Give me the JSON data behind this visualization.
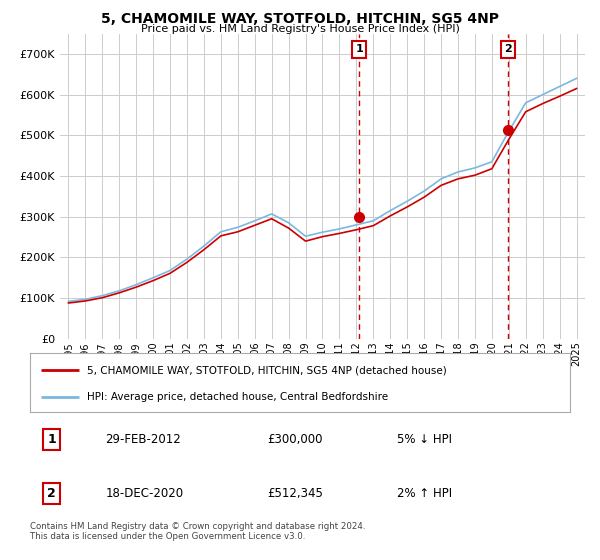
{
  "title": "5, CHAMOMILE WAY, STOTFOLD, HITCHIN, SG5 4NP",
  "subtitle": "Price paid vs. HM Land Registry's House Price Index (HPI)",
  "legend_line1": "5, CHAMOMILE WAY, STOTFOLD, HITCHIN, SG5 4NP (detached house)",
  "legend_line2": "HPI: Average price, detached house, Central Bedfordshire",
  "transaction1_label": "1",
  "transaction1_date": "29-FEB-2012",
  "transaction1_price": "£300,000",
  "transaction1_hpi": "5% ↓ HPI",
  "transaction2_label": "2",
  "transaction2_date": "18-DEC-2020",
  "transaction2_price": "£512,345",
  "transaction2_hpi": "2% ↑ HPI",
  "footnote": "Contains HM Land Registry data © Crown copyright and database right 2024.\nThis data is licensed under the Open Government Licence v3.0.",
  "hpi_color": "#7bb8e0",
  "price_color": "#cc0000",
  "vline_color": "#cc0000",
  "grid_color": "#cccccc",
  "background_color": "#ffffff",
  "years": [
    1995,
    1996,
    1997,
    1998,
    1999,
    2000,
    2001,
    2002,
    2003,
    2004,
    2005,
    2006,
    2007,
    2008,
    2009,
    2010,
    2011,
    2012,
    2013,
    2014,
    2015,
    2016,
    2017,
    2018,
    2019,
    2020,
    2021,
    2022,
    2023,
    2024,
    2025
  ],
  "hpi_values": [
    92000,
    97000,
    106000,
    118000,
    133000,
    150000,
    168000,
    196000,
    228000,
    263000,
    274000,
    290000,
    307000,
    285000,
    252000,
    262000,
    270000,
    280000,
    290000,
    315000,
    338000,
    363000,
    393000,
    410000,
    420000,
    435000,
    510000,
    580000,
    600000,
    620000,
    640000
  ],
  "price_values": [
    88000,
    93000,
    101000,
    113000,
    127000,
    143000,
    161000,
    188000,
    219000,
    253000,
    263000,
    279000,
    295000,
    272000,
    240000,
    251000,
    259000,
    268000,
    278000,
    302000,
    324000,
    348000,
    377000,
    393000,
    402000,
    418000,
    490000,
    558000,
    578000,
    596000,
    615000
  ],
  "transaction1_x": 2012.17,
  "transaction1_y": 300000,
  "transaction2_x": 2020.97,
  "transaction2_y": 512345,
  "ylim": [
    0,
    750000
  ],
  "xlim_start": 1994.5,
  "xlim_end": 2025.5
}
